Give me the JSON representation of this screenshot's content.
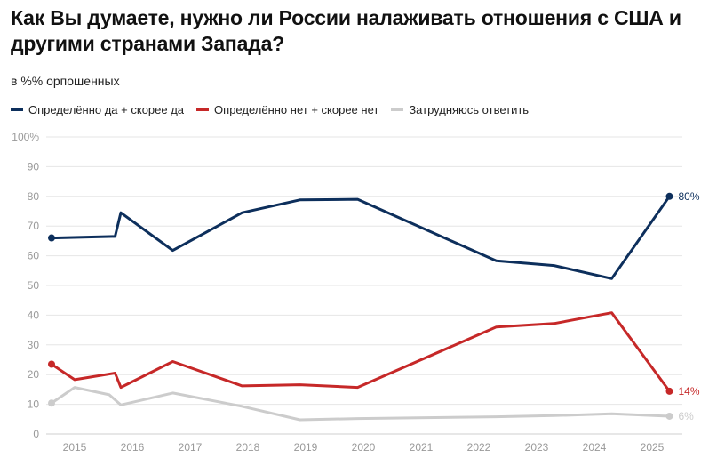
{
  "title": "Как Вы думаете, нужно ли России налаживать отношения с США и другими странами Запада?",
  "subtitle": "в %% орпошенных",
  "chart_data": {
    "type": "line",
    "title": "Как Вы думаете, нужно ли России налаживать отношения с США и другими странами Запада?",
    "subtitle": "в %% орпошенных",
    "xlabel": "",
    "ylabel": "",
    "ylim": [
      0,
      100
    ],
    "xlim": [
      2014.6,
      2025.5
    ],
    "y_ticks": [
      "0",
      "10",
      "20",
      "30",
      "40",
      "50",
      "60",
      "70",
      "80",
      "90",
      "100%"
    ],
    "x_ticks": [
      "2015",
      "2016",
      "2017",
      "2018",
      "2019",
      "2020",
      "2021",
      "2022",
      "2023",
      "2024",
      "2025"
    ],
    "grid": true,
    "legend_position": "top-left",
    "series": [
      {
        "name": "Определённо да + скорее да",
        "color": "#0d2f5c",
        "end_label": "80%",
        "points": [
          [
            2014.6,
            66
          ],
          [
            2015.7,
            66.5
          ],
          [
            2015.8,
            74.5
          ],
          [
            2016.7,
            61.8
          ],
          [
            2017.9,
            74.5
          ],
          [
            2018.9,
            78.8
          ],
          [
            2019.9,
            79
          ],
          [
            2022.3,
            58.3
          ],
          [
            2023.3,
            56.7
          ],
          [
            2024.3,
            52.3
          ],
          [
            2025.3,
            80
          ]
        ]
      },
      {
        "name": "Определённо нет + скорее нет",
        "color": "#c62828",
        "end_label": "14%",
        "points": [
          [
            2014.6,
            23.5
          ],
          [
            2015.0,
            18.3
          ],
          [
            2015.7,
            20.5
          ],
          [
            2015.8,
            15.7
          ],
          [
            2016.7,
            24.4
          ],
          [
            2017.9,
            16.2
          ],
          [
            2018.9,
            16.6
          ],
          [
            2019.9,
            15.7
          ],
          [
            2022.3,
            36
          ],
          [
            2023.3,
            37.2
          ],
          [
            2024.3,
            40.8
          ],
          [
            2025.3,
            14.4
          ]
        ]
      },
      {
        "name": "Затрудняюсь ответить",
        "color": "#cccccc",
        "end_label": "6%",
        "points": [
          [
            2014.6,
            10.4
          ],
          [
            2015.0,
            15.7
          ],
          [
            2015.6,
            13.2
          ],
          [
            2015.8,
            9.8
          ],
          [
            2016.7,
            13.8
          ],
          [
            2017.9,
            9.3
          ],
          [
            2018.9,
            4.8
          ],
          [
            2019.9,
            5.2
          ],
          [
            2022.3,
            5.8
          ],
          [
            2023.3,
            6.2
          ],
          [
            2024.3,
            6.8
          ],
          [
            2025.3,
            6
          ]
        ]
      }
    ]
  }
}
